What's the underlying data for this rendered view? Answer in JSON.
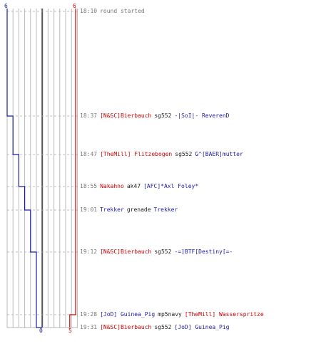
{
  "chart_data": {
    "type": "line",
    "title": "",
    "axis": {
      "blue_start": "6",
      "red_start": "6",
      "blue_end": "0",
      "red_end": "5"
    },
    "colors": {
      "red": "#cc0000",
      "blue": "#1a1aa8",
      "grid": "#bbbbbb",
      "zero": "#555555"
    },
    "blue_steps": [
      6,
      5,
      4,
      3,
      2,
      1,
      0
    ],
    "red_steps": [
      6,
      6,
      6,
      6,
      6,
      6,
      5,
      5
    ],
    "events": [
      {
        "time": "18:10",
        "killer": "round started",
        "weapon": "",
        "victim": "",
        "killer_team": "none",
        "victim_team": "none"
      },
      {
        "time": "18:37",
        "killer": "[N&SC]Bierbauch",
        "weapon": "sg552",
        "victim": "-|SoI|- ReverenD",
        "killer_team": "red",
        "victim_team": "blue"
      },
      {
        "time": "18:47",
        "killer": "[TheMill] Flitzebogen",
        "weapon": "sg552",
        "victim": "G^[BAER]mutter",
        "killer_team": "red",
        "victim_team": "blue"
      },
      {
        "time": "18:55",
        "killer": "Nakahno",
        "weapon": "ak47",
        "victim": "[AFC]*Axl Foley*",
        "killer_team": "red",
        "victim_team": "blue"
      },
      {
        "time": "19:01",
        "killer": "Trekker",
        "weapon": "grenade",
        "victim": "Trekker",
        "killer_team": "blue",
        "victim_team": "blue"
      },
      {
        "time": "19:12",
        "killer": "[N&SC]Bierbauch",
        "weapon": "sg552",
        "victim": "-=]BTF[Destiny[=-",
        "killer_team": "red",
        "victim_team": "blue"
      },
      {
        "time": "19:28",
        "killer": "[JoD] Guinea_Pig",
        "weapon": "mp5navy",
        "victim": "[TheMill] Wasserspritze",
        "killer_team": "blue",
        "victim_team": "red"
      },
      {
        "time": "19:31",
        "killer": "[N&SC]Bierbauch",
        "weapon": "sg552",
        "victim": "[JoD] Guinea_Pig",
        "killer_team": "red",
        "victim_team": "blue"
      }
    ]
  }
}
